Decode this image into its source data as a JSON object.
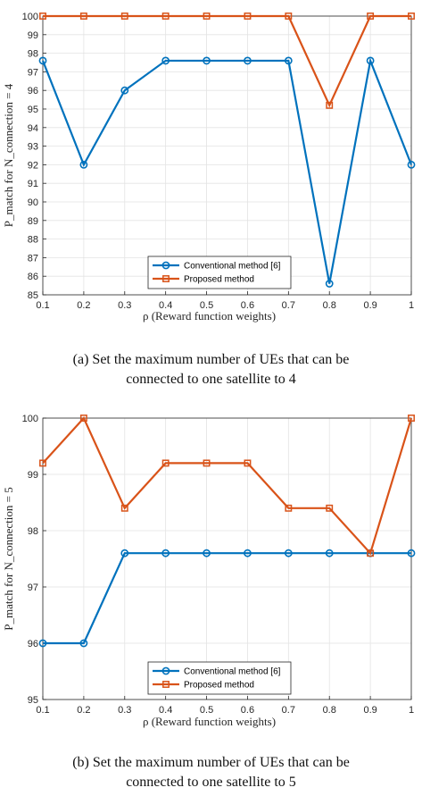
{
  "colors": {
    "conventional": "#0072BD",
    "proposed": "#D95319",
    "grid": "#e3e3e3",
    "axis": "#262626"
  },
  "chart_data": [
    {
      "type": "line",
      "x": [
        0.1,
        0.2,
        0.3,
        0.4,
        0.5,
        0.6,
        0.7,
        0.8,
        0.9,
        1
      ],
      "xticklabels": [
        "0.1",
        "0.2",
        "0.3",
        "0.4",
        "0.5",
        "0.6",
        "0.7",
        "0.8",
        "0.9",
        "1"
      ],
      "xlim": [
        0.1,
        1
      ],
      "ylim": [
        85,
        100
      ],
      "yticks": [
        85,
        86,
        87,
        88,
        89,
        90,
        91,
        92,
        93,
        94,
        95,
        96,
        97,
        98,
        99,
        100
      ],
      "xlabel": "ρ (Reward function weights)",
      "ylabel": "P_match for N_connection = 4",
      "grid": true,
      "legend_position": "bottom-center",
      "series": [
        {
          "name": "Conventional method [6]",
          "marker": "circle",
          "values": [
            97.6,
            92,
            96,
            97.6,
            97.6,
            97.6,
            97.6,
            85.6,
            97.6,
            92
          ]
        },
        {
          "name": "Proposed method",
          "marker": "square",
          "values": [
            100,
            100,
            100,
            100,
            100,
            100,
            100,
            95.2,
            100,
            100
          ]
        }
      ],
      "caption_lines": [
        "(a)  Set  the  maximum  number  of  UEs  that  can  be",
        "connected to one satellite to 4"
      ]
    },
    {
      "type": "line",
      "x": [
        0.1,
        0.2,
        0.3,
        0.4,
        0.5,
        0.6,
        0.7,
        0.8,
        0.9,
        1
      ],
      "xticklabels": [
        "0.1",
        "0.2",
        "0.3",
        "0.4",
        "0.5",
        "0.6",
        "0.7",
        "0.8",
        "0.9",
        "1"
      ],
      "xlim": [
        0.1,
        1
      ],
      "ylim": [
        95,
        100
      ],
      "yticks": [
        95,
        96,
        97,
        98,
        99,
        100
      ],
      "xlabel": "ρ (Reward function weights)",
      "ylabel": "P_match for N_connection = 5",
      "grid": true,
      "legend_position": "bottom-center",
      "series": [
        {
          "name": "Conventional method [6]",
          "marker": "circle",
          "values": [
            96,
            96,
            97.6,
            97.6,
            97.6,
            97.6,
            97.6,
            97.6,
            97.6,
            97.6
          ]
        },
        {
          "name": "Proposed method",
          "marker": "square",
          "values": [
            99.2,
            100,
            98.4,
            99.2,
            99.2,
            99.2,
            98.4,
            98.4,
            97.6,
            100
          ]
        }
      ],
      "caption_lines": [
        "(b)  Set  the  maximum  number  of  UEs  that  can  be",
        "connected to one satellite to 5"
      ]
    }
  ]
}
